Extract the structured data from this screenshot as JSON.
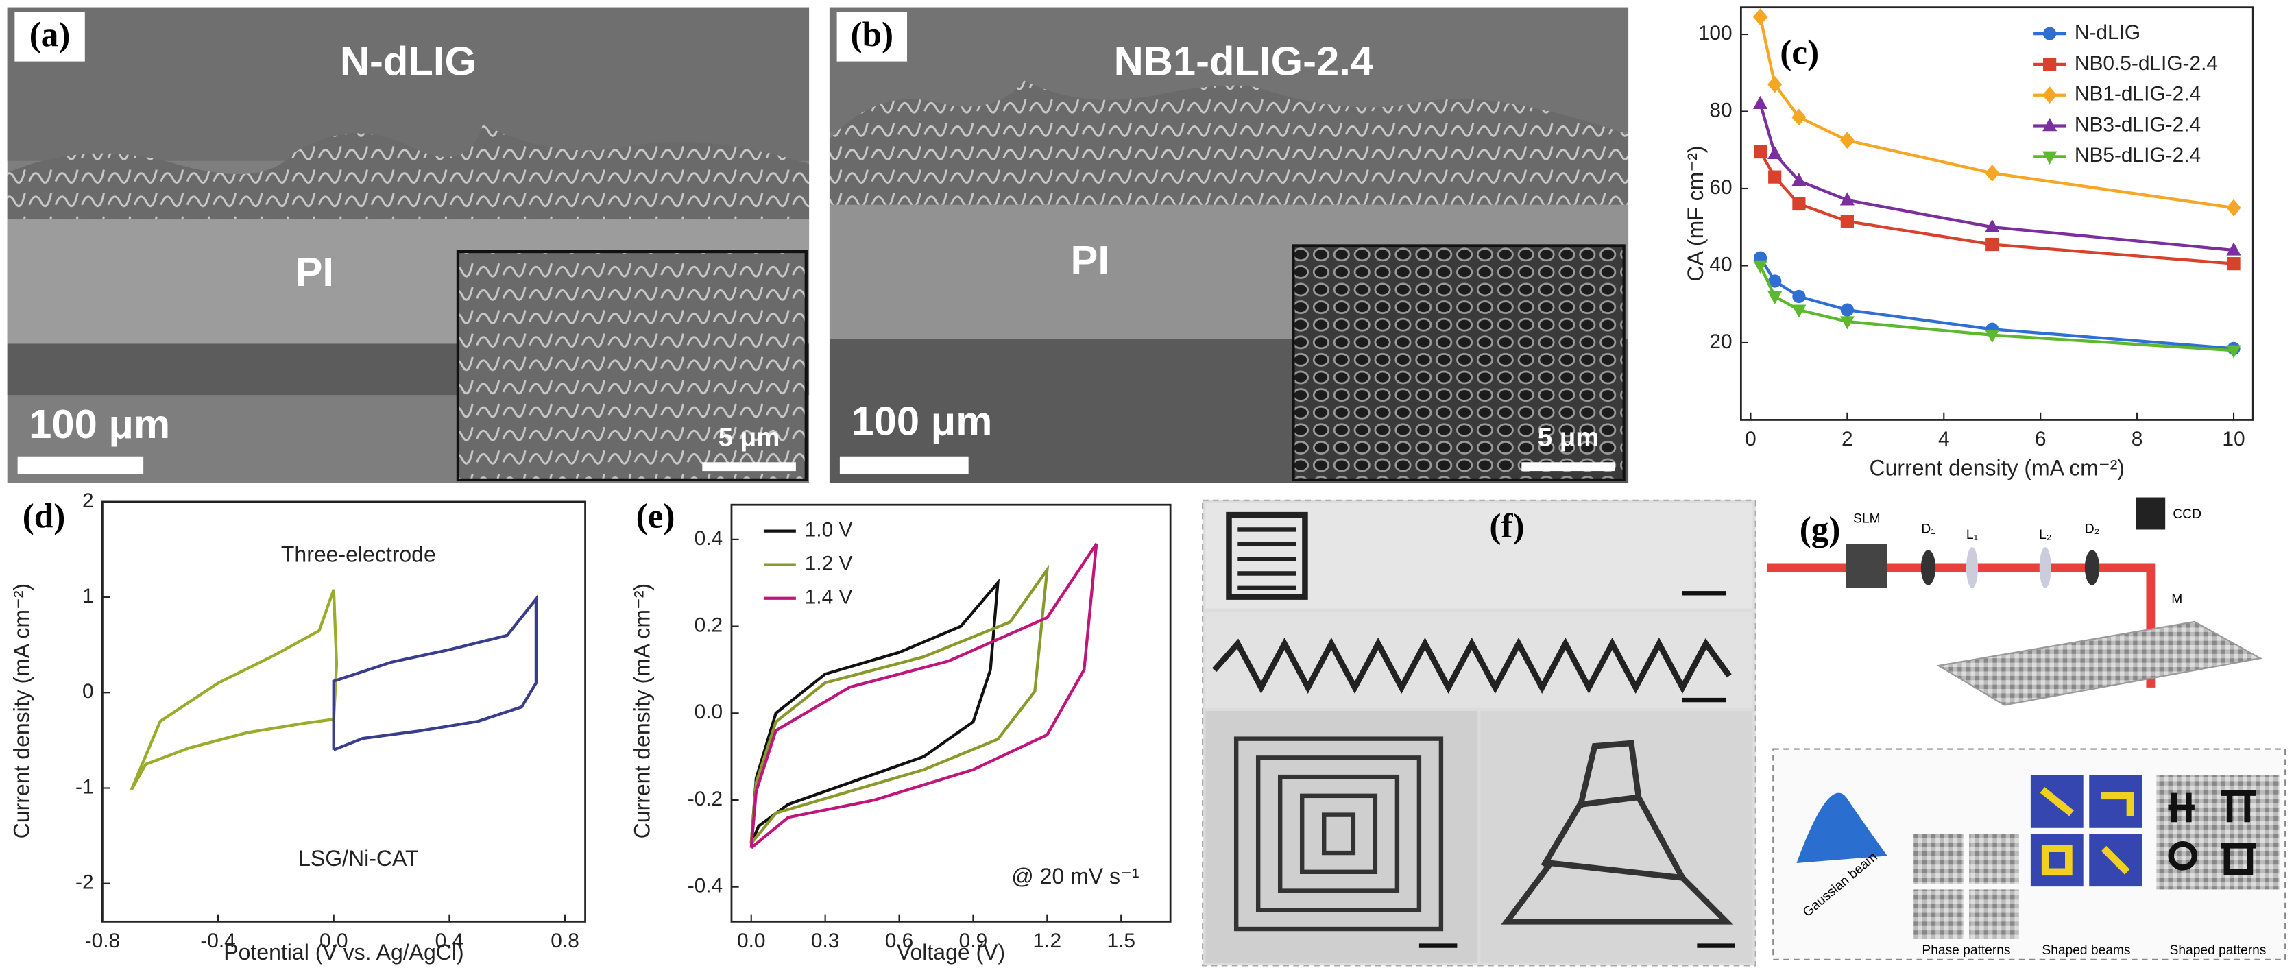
{
  "panels": {
    "a": {
      "label": "(a)",
      "title": "N-dLIG",
      "layer": "PI",
      "scale": "100 μm",
      "inset_scale": "5 μm"
    },
    "b": {
      "label": "(b)",
      "title": "NB1-dLIG-2.4",
      "layer": "PI",
      "scale": "100 μm",
      "inset_scale": "5 μm"
    },
    "f": {
      "label": "(f)"
    },
    "g": {
      "label": "(g)",
      "components": [
        "SLM",
        "D₁",
        "L₁",
        "L₂",
        "D₂",
        "CCD",
        "M"
      ],
      "inset_title": "Gaussian beam",
      "captions": [
        "Phase patterns",
        "Shaped beams",
        "Shaped patterns"
      ]
    }
  },
  "chart_data": [
    {
      "type": "line",
      "panel_label": "(c)",
      "xlabel": "Current density (mA cm⁻²)",
      "ylabel": "CA (mF cm⁻²)",
      "xlim": [
        -0.2,
        10.4
      ],
      "xticks": [
        0,
        2,
        4,
        6,
        8,
        10
      ],
      "ylim": [
        0,
        107
      ],
      "yticks": [
        20,
        40,
        60,
        80,
        100
      ],
      "legend": "upper right",
      "x": [
        0.2,
        0.5,
        1,
        2,
        5,
        10
      ],
      "series": [
        {
          "name": "N-dLIG",
          "color": "#2f6fd3",
          "marker": "circle",
          "values": [
            42,
            36,
            32,
            28.5,
            23.5,
            18.5
          ]
        },
        {
          "name": "NB0.5-dLIG-2.4",
          "color": "#d8412c",
          "marker": "square",
          "values": [
            69.5,
            63,
            56,
            51.5,
            45.5,
            40.5
          ]
        },
        {
          "name": "NB1-dLIG-2.4",
          "color": "#f5a623",
          "marker": "diamond",
          "values": [
            104.5,
            87,
            78.5,
            72.5,
            64,
            55
          ]
        },
        {
          "name": "NB3-dLIG-2.4",
          "color": "#7b2f9e",
          "marker": "triangle",
          "values": [
            82,
            69,
            62,
            57,
            50,
            44
          ]
        },
        {
          "name": "NB5-dLIG-2.4",
          "color": "#5cb82c",
          "marker": "triangle-down",
          "values": [
            40,
            32,
            28.5,
            25.5,
            22,
            18
          ]
        }
      ]
    },
    {
      "type": "line",
      "panel_label": "(d)",
      "xlabel": "Potential (V vs. Ag/AgCl)",
      "ylabel": "Current density  (mA cm⁻²)",
      "annotations": [
        "Three-electrode",
        "LSG/Ni-CAT"
      ],
      "xlim": [
        -0.8,
        0.87
      ],
      "xticks": [
        -0.8,
        -0.4,
        {
          "value": 0,
          "label": "0.0"
        },
        0.4,
        0.8
      ],
      "ylim": [
        -2.4,
        2
      ],
      "yticks": [
        -2,
        -1,
        0,
        1,
        2
      ],
      "series": [
        {
          "color": "#9aac2c",
          "x": [
            -0.7,
            -0.6,
            -0.4,
            -0.2,
            -0.05,
            0,
            0.01,
            0,
            -0.1,
            -0.3,
            -0.5,
            -0.65,
            -0.7
          ],
          "values": [
            -1.02,
            -0.3,
            0.1,
            0.4,
            0.65,
            1.08,
            0.3,
            -0.28,
            -0.32,
            -0.42,
            -0.58,
            -0.75,
            -1.02
          ]
        },
        {
          "color": "#3a3c8c",
          "x": [
            0,
            0,
            0.2,
            0.4,
            0.6,
            0.7,
            0.7,
            0.65,
            0.5,
            0.3,
            0.1,
            0
          ],
          "values": [
            -0.6,
            0.12,
            0.32,
            0.45,
            0.6,
            0.98,
            0.1,
            -0.15,
            -0.3,
            -0.4,
            -0.48,
            -0.6
          ]
        }
      ]
    },
    {
      "type": "line",
      "panel_label": "(e)",
      "xlabel": "Voltage (V)",
      "ylabel": "Current density  (mA cm⁻²)",
      "annotations": [
        "@ 20 mV s⁻¹"
      ],
      "legend": "upper left",
      "xlim": [
        -0.08,
        1.7
      ],
      "xticks": [
        {
          "value": 0,
          "label": "0.0"
        },
        0.3,
        0.6,
        0.9,
        1.2,
        1.5
      ],
      "ylim": [
        -0.48,
        0.48
      ],
      "yticks": [
        -0.4,
        -0.2,
        {
          "value": 0,
          "label": "0.0"
        },
        0.2,
        0.4
      ],
      "series": [
        {
          "name": "1.0 V",
          "color": "#111111",
          "x": [
            0,
            0.02,
            0.1,
            0.3,
            0.6,
            0.85,
            1.0,
            0.97,
            0.9,
            0.7,
            0.4,
            0.15,
            0.03,
            0
          ],
          "values": [
            -0.3,
            -0.15,
            0,
            0.09,
            0.14,
            0.2,
            0.3,
            0.1,
            -0.02,
            -0.1,
            -0.16,
            -0.21,
            -0.26,
            -0.3
          ]
        },
        {
          "name": "1.2 V",
          "color": "#8a9a2a",
          "x": [
            0,
            0.02,
            0.1,
            0.3,
            0.7,
            1.05,
            1.2,
            1.15,
            1.0,
            0.7,
            0.4,
            0.1,
            0
          ],
          "values": [
            -0.3,
            -0.16,
            -0.02,
            0.07,
            0.13,
            0.21,
            0.33,
            0.05,
            -0.06,
            -0.13,
            -0.18,
            -0.23,
            -0.3
          ]
        },
        {
          "name": "1.4 V",
          "color": "#c0157a",
          "x": [
            0,
            0.02,
            0.1,
            0.4,
            0.8,
            1.2,
            1.4,
            1.35,
            1.2,
            0.9,
            0.5,
            0.15,
            0
          ],
          "values": [
            -0.31,
            -0.18,
            -0.04,
            0.06,
            0.12,
            0.22,
            0.39,
            0.1,
            -0.05,
            -0.13,
            -0.2,
            -0.24,
            -0.31
          ]
        }
      ]
    }
  ]
}
